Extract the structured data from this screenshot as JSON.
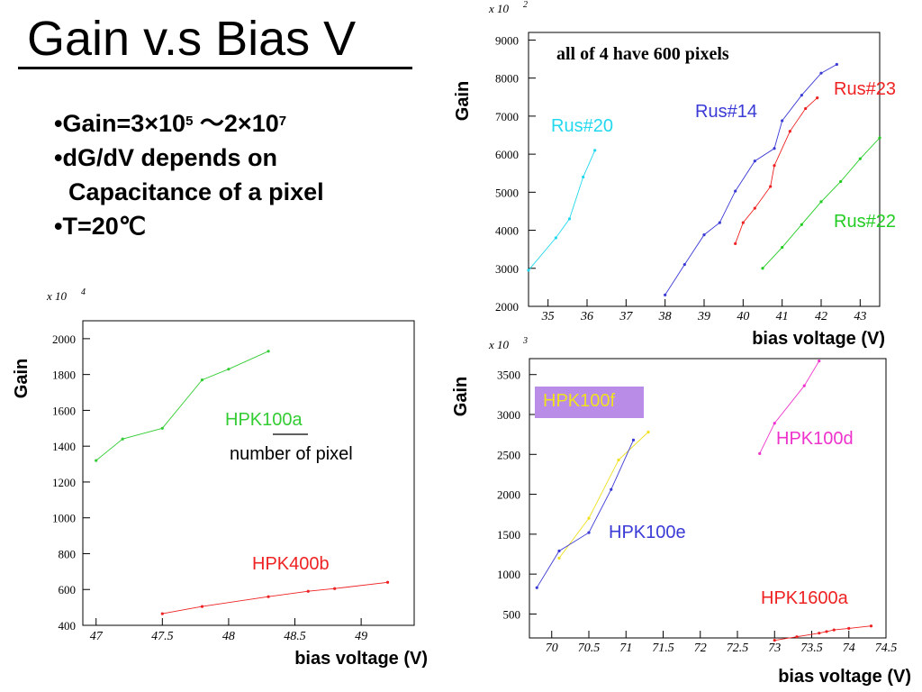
{
  "slide": {
    "title": "Gain v.s Bias V",
    "bullets": [
      {
        "text": "•Gain=3×10",
        "sup": "5",
        "text2": " ～2×10",
        "sup2": "7"
      },
      {
        "text": "•dG/dV depends on"
      },
      {
        "text": "Capacitance of a pixel"
      },
      {
        "text": "•T=20℃"
      }
    ]
  },
  "chart_data": [
    {
      "type": "line",
      "scale_label": "x 10",
      "scale_exp": "2",
      "ylabel": "Gain",
      "xlabel": "bias voltage (V)",
      "xlim": [
        34.5,
        43.5
      ],
      "ylim": [
        2000,
        9200
      ],
      "xticks": [
        "35",
        "36",
        "37",
        "38",
        "39",
        "40",
        "41",
        "42",
        "43"
      ],
      "yticks": [
        "2000",
        "3000",
        "4000",
        "5000",
        "6000",
        "7000",
        "8000",
        "9000"
      ],
      "note": "all of 4 have 600 pixels",
      "series": [
        {
          "name": "Rus#20",
          "color": "#22d8ee",
          "x": [
            34.5,
            35.2,
            35.55,
            35.9,
            36.2
          ],
          "y": [
            2950,
            3800,
            4300,
            5400,
            6100
          ]
        },
        {
          "name": "Rus#14",
          "color": "#3a3ad6",
          "x": [
            38.0,
            38.5,
            39.0,
            39.4,
            39.8,
            40.3,
            40.8,
            41.0,
            41.5,
            42.0,
            42.4
          ],
          "y": [
            2300,
            3100,
            3880,
            4200,
            5030,
            5820,
            6150,
            6880,
            7550,
            8130,
            8360
          ]
        },
        {
          "name": "Rus#23",
          "color": "#ee2222",
          "x": [
            39.8,
            40.0,
            40.3,
            40.7,
            40.8,
            41.2,
            41.6,
            41.9
          ],
          "y": [
            3650,
            4200,
            4580,
            5150,
            5700,
            6600,
            7200,
            7480
          ]
        },
        {
          "name": "Rus#22",
          "color": "#22cc22",
          "x": [
            40.5,
            41.0,
            41.5,
            42.0,
            42.5,
            43.0,
            43.5
          ],
          "y": [
            3000,
            3550,
            4150,
            4750,
            5280,
            5880,
            6430
          ]
        }
      ]
    },
    {
      "type": "line",
      "scale_label": "x 10",
      "scale_exp": "4",
      "ylabel": "Gain",
      "xlabel": "bias voltage (V)",
      "xlim": [
        46.9,
        49.4
      ],
      "ylim": [
        400,
        2100
      ],
      "xticks": [
        "47",
        "47.5",
        "48",
        "48.5",
        "49"
      ],
      "yticks": [
        "400",
        "600",
        "800",
        "1000",
        "1200",
        "1400",
        "1600",
        "1800",
        "2000"
      ],
      "note": "number of pixel",
      "series": [
        {
          "name": "HPK100a",
          "color": "#33cc33",
          "x": [
            47.0,
            47.2,
            47.5,
            47.8,
            48.0,
            48.3
          ],
          "y": [
            1320,
            1440,
            1500,
            1770,
            1830,
            1930
          ]
        },
        {
          "name": "HPK400b",
          "color": "#ee2222",
          "x": [
            47.5,
            47.8,
            48.3,
            48.6,
            48.8,
            49.2
          ],
          "y": [
            465,
            505,
            560,
            590,
            605,
            640
          ]
        }
      ]
    },
    {
      "type": "line",
      "scale_label": "x 10",
      "scale_exp": "3",
      "ylabel": "Gain",
      "xlabel": "bias voltage (V)",
      "xlim": [
        69.7,
        74.5
      ],
      "ylim": [
        200,
        3700
      ],
      "xticks": [
        "70",
        "70.5",
        "71",
        "71.5",
        "72",
        "72.5",
        "73",
        "73.5",
        "74",
        "74.5"
      ],
      "yticks": [
        "500",
        "1000",
        "1500",
        "2000",
        "2500",
        "3000",
        "3500"
      ],
      "series": [
        {
          "name": "HPK100f",
          "color": "#f0e020",
          "x": [
            70.1,
            70.5,
            70.9,
            71.3
          ],
          "y": [
            1200,
            1700,
            2430,
            2780
          ]
        },
        {
          "name": "HPK100e",
          "color": "#3a3ad6",
          "x": [
            69.8,
            70.1,
            70.5,
            70.8,
            71.1
          ],
          "y": [
            830,
            1290,
            1520,
            2060,
            2680
          ]
        },
        {
          "name": "HPK100d",
          "color": "#ee33cc",
          "x": [
            72.8,
            73.0,
            73.4,
            73.6
          ],
          "y": [
            2510,
            2890,
            3360,
            3670
          ]
        },
        {
          "name": "HPK1600a",
          "color": "#ee2222",
          "x": [
            73.0,
            73.3,
            73.6,
            73.7,
            73.8,
            74.0,
            74.3
          ],
          "y": [
            170,
            215,
            260,
            280,
            300,
            320,
            350
          ]
        }
      ]
    }
  ]
}
